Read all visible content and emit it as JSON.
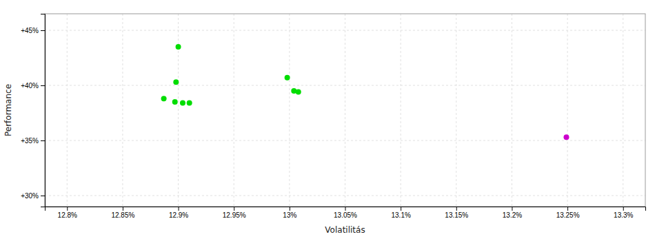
{
  "chart_data": {
    "type": "scatter",
    "xlabel": "Volatilitás",
    "ylabel": "Performance",
    "xlim": [
      12.78,
      13.32
    ],
    "ylim": [
      29.0,
      46.5
    ],
    "xticks": [
      {
        "value": 12.8,
        "label": "12.8%"
      },
      {
        "value": 12.85,
        "label": "12.85%"
      },
      {
        "value": 12.9,
        "label": "12.9%"
      },
      {
        "value": 12.95,
        "label": "12.95%"
      },
      {
        "value": 13.0,
        "label": "13%"
      },
      {
        "value": 13.05,
        "label": "13.05%"
      },
      {
        "value": 13.1,
        "label": "13.1%"
      },
      {
        "value": 13.15,
        "label": "13.15%"
      },
      {
        "value": 13.2,
        "label": "13.2%"
      },
      {
        "value": 13.25,
        "label": "13.25%"
      },
      {
        "value": 13.3,
        "label": "13.3%"
      }
    ],
    "yticks": [
      {
        "value": 30,
        "label": "+30%"
      },
      {
        "value": 35,
        "label": "+35%"
      },
      {
        "value": 40,
        "label": "+40%"
      },
      {
        "value": 45,
        "label": "+45%"
      }
    ],
    "grid": true,
    "series": [
      {
        "color": "#00dd00",
        "x": [
          12.9,
          12.898,
          12.887,
          12.897,
          12.904,
          12.91,
          12.998,
          13.004,
          13.008
        ],
        "values": [
          43.5,
          40.3,
          38.8,
          38.5,
          38.4,
          38.4,
          40.7,
          39.5,
          39.4
        ]
      },
      {
        "color": "#cc00cc",
        "x": [
          13.249
        ],
        "values": [
          35.3
        ]
      }
    ]
  }
}
